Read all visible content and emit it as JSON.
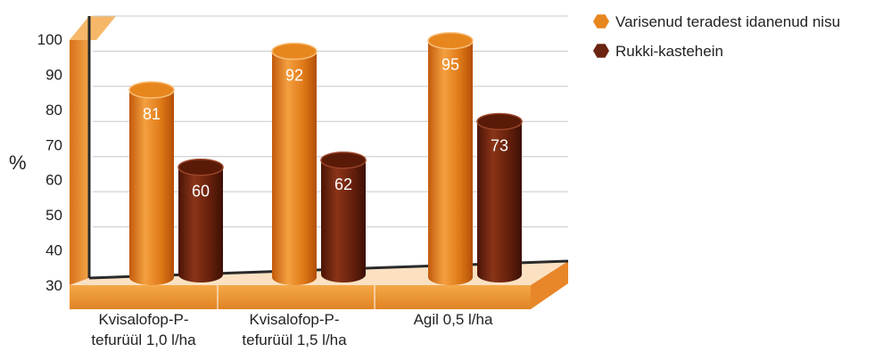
{
  "chart_data": {
    "type": "bar",
    "categories": [
      [
        "Kvisalofop-P-",
        "tefurüül 1,0 l/ha"
      ],
      [
        "Kvisalofop-P-",
        "tefurüül 1,5 l/ha"
      ],
      [
        "Agil 0,5 l/ha"
      ]
    ],
    "series": [
      {
        "name": "Varisenud teradest idanenud nisu",
        "values": [
          81,
          92,
          95
        ],
        "color": "#e8861e"
      },
      {
        "name": "Rukki-kastehein",
        "values": [
          60,
          62,
          73
        ],
        "color": "#6b2410"
      }
    ],
    "ylabel": "%",
    "ylim": [
      30,
      100
    ],
    "yticks": [
      30,
      40,
      50,
      60,
      70,
      80,
      90,
      100
    ],
    "grid": true,
    "legend_position": "top-right",
    "style": "3d-cylinder"
  }
}
